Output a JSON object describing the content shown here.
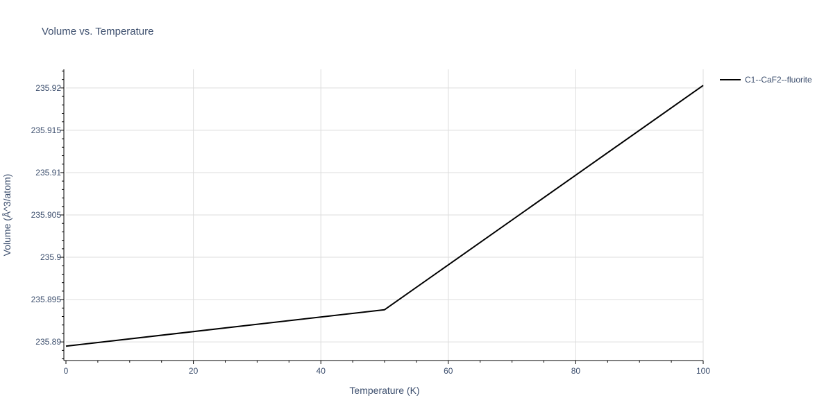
{
  "chart_data": {
    "type": "line",
    "title": "Volume vs. Temperature",
    "xlabel": "Temperature (K)",
    "ylabel": "Volume (Å^3/atom)",
    "xlim": [
      0,
      100
    ],
    "ylim": [
      235.8878,
      235.9222
    ],
    "x_ticks": [
      0,
      20,
      40,
      60,
      80,
      100
    ],
    "x_tick_labels": [
      "0",
      "20",
      "40",
      "60",
      "80",
      "100"
    ],
    "y_ticks": [
      235.89,
      235.895,
      235.9,
      235.905,
      235.91,
      235.915,
      235.92
    ],
    "y_tick_labels": [
      "235.89",
      "235.895",
      "235.9",
      "235.905",
      "235.91",
      "235.915",
      "235.92"
    ],
    "grid": true,
    "legend_position": "top-right, outside plot",
    "series": [
      {
        "name": "C1--CaF2--fluorite",
        "color": "#000000",
        "x": [
          0,
          50,
          100
        ],
        "y": [
          235.8895,
          235.8938,
          235.9203
        ]
      }
    ]
  }
}
